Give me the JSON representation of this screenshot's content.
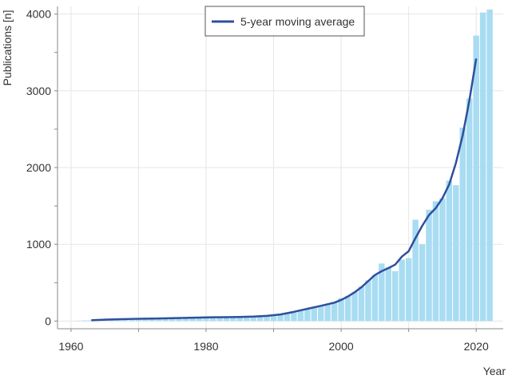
{
  "chart_data": {
    "type": "bar",
    "xlabel": "Year",
    "ylabel": "Publications [n]",
    "xlim": [
      1958,
      2024
    ],
    "ylim": [
      -100,
      4100
    ],
    "x_ticks": [
      "1960",
      "1980",
      "2000",
      "2020"
    ],
    "y_ticks": [
      "0",
      "1000",
      "2000",
      "3000",
      "4000"
    ],
    "grid": true,
    "legend_position": "top-center",
    "bar_color": "#a8dcf3",
    "line_color": "#2f4f9c",
    "years": [
      1961,
      1962,
      1963,
      1964,
      1965,
      1966,
      1967,
      1968,
      1969,
      1970,
      1971,
      1972,
      1973,
      1974,
      1975,
      1976,
      1977,
      1978,
      1979,
      1980,
      1981,
      1982,
      1983,
      1984,
      1985,
      1986,
      1987,
      1988,
      1989,
      1990,
      1991,
      1992,
      1993,
      1994,
      1995,
      1996,
      1997,
      1998,
      1999,
      2000,
      2001,
      2002,
      2003,
      2004,
      2005,
      2006,
      2007,
      2008,
      2009,
      2010,
      2011,
      2012,
      2013,
      2014,
      2015,
      2016,
      2017,
      2018,
      2019,
      2020,
      2021,
      2022
    ],
    "publications": [
      5,
      8,
      10,
      15,
      18,
      22,
      25,
      28,
      30,
      30,
      32,
      33,
      35,
      38,
      40,
      42,
      43,
      45,
      46,
      48,
      49,
      50,
      51,
      52,
      53,
      55,
      58,
      62,
      68,
      75,
      85,
      100,
      120,
      140,
      160,
      180,
      200,
      220,
      250,
      300,
      330,
      380,
      450,
      530,
      600,
      750,
      700,
      650,
      800,
      820,
      1320,
      1000,
      1450,
      1560,
      1600,
      1830,
      1770,
      2520,
      2900,
      3720,
      4020,
      4060
    ],
    "series": [
      {
        "name": "5-year moving average",
        "type": "line",
        "x": [
          1963,
          1965,
          1967,
          1969,
          1971,
          1973,
          1975,
          1977,
          1979,
          1981,
          1983,
          1985,
          1987,
          1989,
          1991,
          1993,
          1995,
          1997,
          1999,
          2000,
          2001,
          2002,
          2003,
          2004,
          2005,
          2006,
          2007,
          2008,
          2009,
          2010,
          2011,
          2012,
          2013,
          2014,
          2015,
          2016,
          2017,
          2018,
          2019,
          2020
        ],
        "y": [
          10,
          18,
          24,
          28,
          31,
          34,
          38,
          42,
          46,
          49,
          51,
          53,
          58,
          68,
          86,
          120,
          160,
          198,
          240,
          275,
          320,
          375,
          440,
          520,
          600,
          650,
          690,
          735,
          840,
          910,
          1080,
          1240,
          1380,
          1470,
          1600,
          1780,
          2060,
          2420,
          2880,
          3420
        ]
      }
    ]
  }
}
